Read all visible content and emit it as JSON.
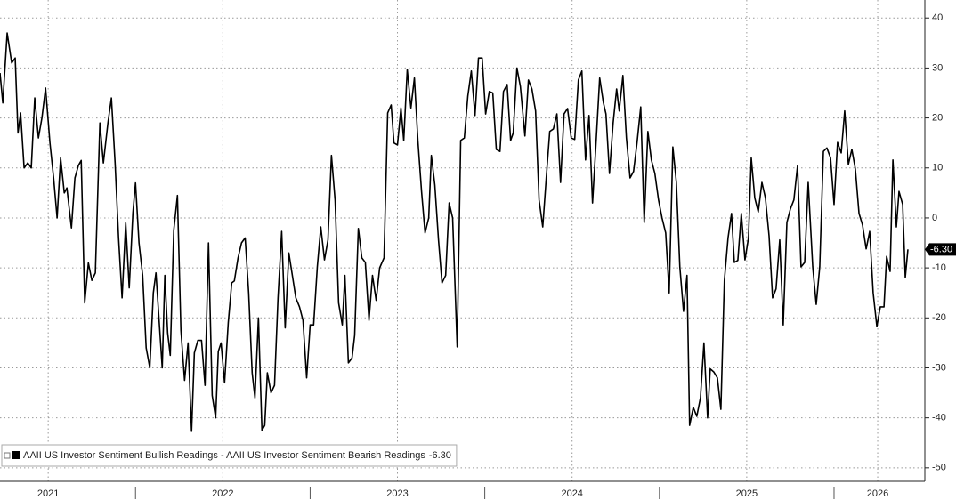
{
  "chart_data": {
    "type": "line",
    "xlim": [
      2021.224,
      2026.52
    ],
    "ylim": [
      -52.7,
      43.6
    ],
    "xticks": [
      {
        "value": 2021.5,
        "label": "2021"
      },
      {
        "value": 2022.5,
        "label": "2022"
      },
      {
        "value": 2023.5,
        "label": "2023"
      },
      {
        "value": 2024.5,
        "label": "2024"
      },
      {
        "value": 2025.5,
        "label": "2025"
      },
      {
        "value": 2026.25,
        "label": "2026"
      }
    ],
    "yticks": [
      40,
      30,
      20,
      10,
      0,
      -10,
      -20,
      -30,
      -40,
      -50
    ],
    "grid": true,
    "legend": "bottom-left",
    "x": [
      2021.224,
      2021.24,
      2021.265,
      2021.291,
      2021.311,
      2021.327,
      2021.342,
      2021.362,
      2021.383,
      2021.403,
      2021.423,
      2021.444,
      2021.464,
      2021.485,
      2021.51,
      2021.531,
      2021.551,
      2021.571,
      2021.592,
      2021.607,
      2021.633,
      2021.653,
      2021.673,
      2021.689,
      2021.709,
      2021.73,
      2021.75,
      2021.77,
      2021.796,
      2021.816,
      2021.842,
      2021.862,
      2021.883,
      2021.903,
      2021.923,
      2021.944,
      2021.964,
      2021.985,
      2022.0,
      2022.02,
      2022.041,
      2022.061,
      2022.082,
      2022.102,
      2022.117,
      2022.138,
      2022.153,
      2022.168,
      2022.184,
      2022.199,
      2022.219,
      2022.24,
      2022.26,
      2022.281,
      2022.301,
      2022.321,
      2022.337,
      2022.357,
      2022.378,
      2022.398,
      2022.418,
      2022.439,
      2022.459,
      2022.474,
      2022.49,
      2022.51,
      2022.531,
      2022.551,
      2022.566,
      2022.587,
      2022.607,
      2022.628,
      2022.648,
      2022.668,
      2022.684,
      2022.704,
      2022.724,
      2022.74,
      2022.755,
      2022.776,
      2022.796,
      2022.816,
      2022.837,
      2022.857,
      2022.878,
      2022.898,
      2022.918,
      2022.939,
      2022.959,
      2022.98,
      2023.0,
      2023.02,
      2023.041,
      2023.061,
      2023.082,
      2023.102,
      2023.122,
      2023.143,
      2023.163,
      2023.184,
      2023.199,
      2023.219,
      2023.24,
      2023.255,
      2023.276,
      2023.296,
      2023.316,
      2023.337,
      2023.357,
      2023.378,
      2023.398,
      2023.423,
      2023.444,
      2023.464,
      2023.48,
      2023.5,
      2023.52,
      2023.536,
      2023.556,
      2023.577,
      2023.597,
      2023.617,
      2023.638,
      2023.658,
      2023.679,
      2023.694,
      2023.714,
      2023.735,
      2023.755,
      2023.776,
      2023.796,
      2023.816,
      2023.842,
      2023.862,
      2023.883,
      2023.903,
      2023.923,
      2023.944,
      2023.964,
      2023.985,
      2024.005,
      2024.026,
      2024.046,
      2024.066,
      2024.087,
      2024.107,
      2024.128,
      2024.148,
      2024.163,
      2024.184,
      2024.204,
      2024.23,
      2024.25,
      2024.27,
      2024.291,
      2024.311,
      2024.332,
      2024.352,
      2024.372,
      2024.393,
      2024.413,
      2024.434,
      2024.454,
      2024.474,
      2024.495,
      2024.515,
      2024.536,
      2024.556,
      2024.577,
      2024.597,
      2024.617,
      2024.638,
      2024.658,
      2024.679,
      2024.694,
      2024.714,
      2024.735,
      2024.755,
      2024.77,
      2024.791,
      2024.811,
      2024.832,
      2024.852,
      2024.872,
      2024.893,
      2024.913,
      2024.934,
      2024.954,
      2024.974,
      2024.995,
      2025.015,
      2025.036,
      2025.056,
      2025.077,
      2025.097,
      2025.117,
      2025.138,
      2025.158,
      2025.173,
      2025.194,
      2025.214,
      2025.235,
      2025.255,
      2025.276,
      2025.291,
      2025.311,
      2025.332,
      2025.352,
      2025.372,
      2025.393,
      2025.413,
      2025.429,
      2025.449,
      2025.469,
      2025.49,
      2025.51,
      2025.526,
      2025.546,
      2025.566,
      2025.587,
      2025.607,
      2025.628,
      2025.648,
      2025.668,
      2025.689,
      2025.709,
      2025.73,
      2025.75,
      2025.77,
      2025.791,
      2025.811,
      2025.832,
      2025.852,
      2025.878,
      2025.898,
      2025.918,
      2025.939,
      2025.959,
      2025.98,
      2026.0,
      2026.02,
      2026.041,
      2026.061,
      2026.082,
      2026.102,
      2026.122,
      2026.143,
      2026.163,
      2026.184,
      2026.204,
      2026.224,
      2026.245,
      2026.265,
      2026.286,
      2026.301,
      2026.321,
      2026.337,
      2026.357,
      2026.372,
      2026.393,
      2026.408,
      2026.423
    ],
    "series": [
      {
        "name": "AAII US Investor Sentiment Bullish Readings - AAII US Investor Sentiment Bearish Readings",
        "color": "#000000",
        "last_label": "-6.30",
        "values": [
          29,
          23,
          37,
          31,
          32,
          17,
          21,
          10,
          11,
          10,
          24,
          16,
          20,
          26,
          15,
          8,
          0,
          12,
          5,
          6,
          -2,
          8,
          10.5,
          11.5,
          -17,
          -9,
          -12.5,
          -11,
          19,
          11,
          19,
          24,
          11,
          -4,
          -16,
          -1,
          -14,
          1,
          7,
          -5,
          -11.5,
          -26,
          -30,
          -15,
          -11,
          -22,
          -30,
          -11.5,
          -23,
          -27.5,
          -2.5,
          4.5,
          -22.5,
          -32.5,
          -25,
          -42.7,
          -27,
          -24.5,
          -24.5,
          -33.5,
          -5,
          -35.5,
          -40,
          -26.7,
          -25,
          -33,
          -21,
          -13,
          -12.6,
          -8,
          -5,
          -4,
          -15,
          -31,
          -36,
          -20,
          -42.5,
          -41.5,
          -31,
          -35,
          -33.5,
          -16,
          -2.7,
          -22,
          -7,
          -11.5,
          -16,
          -17.8,
          -20.5,
          -32,
          -21.4,
          -21.4,
          -9.8,
          -1.8,
          -8.4,
          -4.4,
          12.5,
          3.5,
          -17,
          -21.4,
          -11.5,
          -29,
          -28,
          -23.5,
          -2.1,
          -8,
          -8.9,
          -20.5,
          -11.5,
          -16.5,
          -10,
          -8,
          21,
          22.6,
          15,
          14.6,
          22,
          15.5,
          29.7,
          22,
          28,
          15.5,
          5.3,
          -3,
          0,
          12.5,
          6.6,
          -4.4,
          -13,
          -11.5,
          3,
          0,
          -25.8,
          15.5,
          16,
          24.4,
          29.4,
          20.5,
          32,
          32,
          20.8,
          25.3,
          25,
          13.7,
          13.3,
          25.3,
          26.7,
          15.5,
          17,
          30,
          26.3,
          16.4,
          27.6,
          25.8,
          21.4,
          3.6,
          -1.8,
          8,
          17.3,
          17.8,
          20.8,
          7.1,
          20.8,
          21.9,
          16,
          15.7,
          27.6,
          29.4,
          11.6,
          20.5,
          3,
          15.5,
          28,
          23.1,
          20.8,
          8.9,
          19,
          25.8,
          21.4,
          28.5,
          16,
          8,
          9.3,
          15.1,
          22.2,
          -0.9,
          17.3,
          11.6,
          8.9,
          3.6,
          0,
          -3,
          -15,
          14.2,
          7.1,
          -9.8,
          -18.7,
          -11.5,
          -41.5,
          -37.9,
          -39.7,
          -36,
          -25,
          -40,
          -30.2,
          -30.8,
          -32,
          -38.3,
          -12.5,
          -4,
          0.9,
          -8.9,
          -8.5,
          0.9,
          -8.4,
          -4,
          12,
          4,
          1.2,
          7.1,
          4,
          -3.6,
          -16,
          -14.2,
          -4.4,
          -21.4,
          -0.9,
          1.8,
          3.6,
          10.5,
          -9.8,
          -8.9,
          7.1,
          -9.8,
          -17.3,
          -9.8,
          13.3,
          14,
          12,
          2.7,
          15.1,
          13,
          21.4,
          10.7,
          13.7,
          9.8,
          0.9,
          -1.4,
          -6.2,
          -2.7,
          -15,
          -21.7,
          -17.8,
          -17.8,
          -7.7,
          -10.7,
          11.6,
          -1.8,
          5.3,
          2.7,
          -11.9,
          -6.3
        ]
      }
    ]
  }
}
